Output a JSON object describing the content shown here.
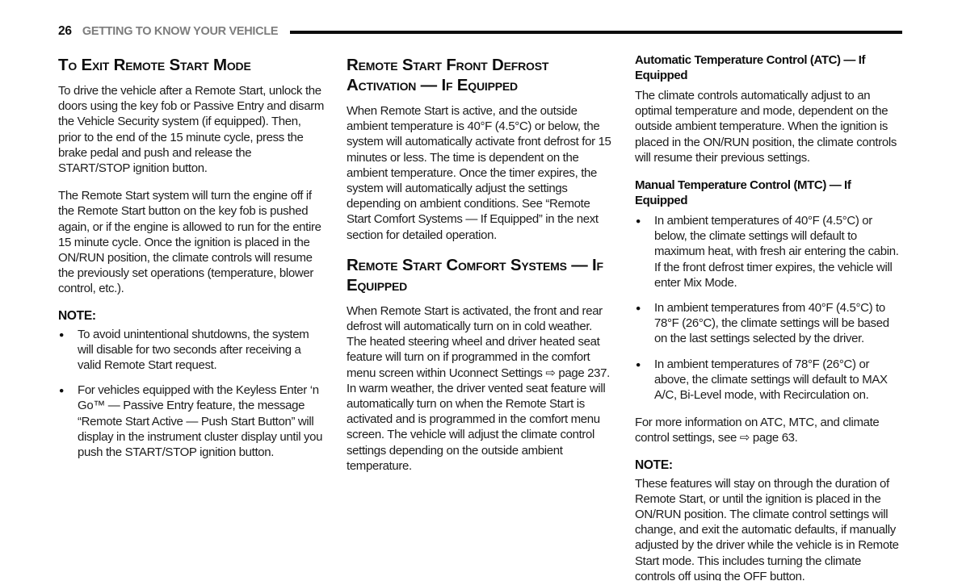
{
  "header": {
    "page_number": "26",
    "chapter_title": "GETTING TO KNOW YOUR VEHICLE"
  },
  "col1": {
    "heading": "To Exit Remote Start Mode",
    "para1": "To drive the vehicle after a Remote Start, unlock the doors using the key fob or Passive Entry and disarm the Vehicle Security system (if equipped). Then, prior to the end of the 15 minute cycle, press the brake pedal and push and release the START/STOP ignition button.",
    "para2": "The Remote Start system will turn the engine off if the Remote Start button on the key fob is pushed again, or if the engine is allowed to run for the entire 15 minute cycle. Once the ignition is placed in the ON/RUN position, the climate controls will resume the previously set operations (temperature, blower control, etc.).",
    "note_label": "NOTE:",
    "bullets": [
      "To avoid unintentional shutdowns, the system will disable for two seconds after receiving a valid Remote Start request.",
      "For vehicles equipped with the Keyless Enter ‘n Go™ — Passive Entry feature, the message “Remote Start Active — Push Start Button” will display in the instrument cluster display until you push the START/STOP ignition button."
    ]
  },
  "col2": {
    "heading1": "Remote Start Front Defrost Activation — If Equipped",
    "para1": "When Remote Start is active, and the outside ambient temperature is 40°F (4.5°C) or below, the system will automatically activate front defrost for 15 minutes or less. The time is dependent on the ambient temperature. Once the timer expires, the system will automatically adjust the settings depending on ambient conditions. See “Remote Start Comfort Systems — If Equipped” in the next section for detailed operation.",
    "heading2": "Remote Start Comfort Systems — If Equipped",
    "para2": "When Remote Start is activated, the front and rear defrost will automatically turn on in cold weather. The heated steering wheel and driver heated seat feature will turn on if programmed in the comfort menu screen within Uconnect Settings ⇨ page 237. In warm weather, the driver vented seat feature will automatically turn on when the Remote Start is activated and is programmed in the comfort menu screen. The vehicle will adjust the climate control settings depending on the outside ambient temperature."
  },
  "col3": {
    "heading1": "Automatic Temperature Control (ATC) — If Equipped",
    "para1": "The climate controls automatically adjust to an optimal temperature and mode, dependent on the outside ambient temperature. When the ignition is placed in the ON/RUN position, the climate controls will resume their previous settings.",
    "heading2": "Manual Temperature Control (MTC) — If Equipped",
    "bullets": [
      "In ambient temperatures of 40°F (4.5°C) or below, the climate settings will default to maximum heat, with fresh air entering the cabin. If the front defrost timer expires, the vehicle will enter Mix Mode.",
      "In ambient temperatures from 40°F (4.5°C) to 78°F (26°C), the climate settings will be based on the last settings selected by the driver.",
      "In ambient temperatures of 78°F (26°C) or above, the climate settings will default to MAX A/C, Bi-Level mode, with Recirculation on."
    ],
    "para2": "For more information on ATC, MTC, and climate control settings, see ⇨ page 63.",
    "note_label": "NOTE:",
    "note_text": "These features will stay on through the duration of Remote Start, or until the ignition is placed in the ON/RUN position. The climate control settings will change, and exit the automatic defaults, if manually adjusted by the driver while the vehicle is in Remote Start mode. This includes turning the climate controls off using the OFF button."
  }
}
